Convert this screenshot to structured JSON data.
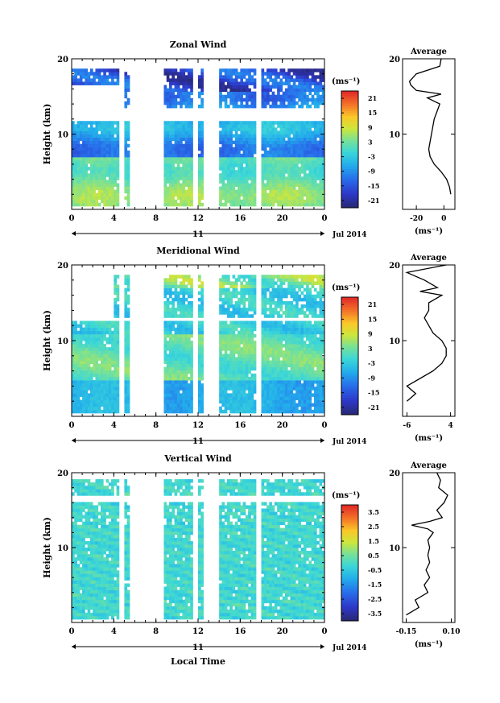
{
  "chart_data": [
    {
      "type": "heatmap",
      "title": "Zonal Wind",
      "ylabel": "Height (km)",
      "yticks": [
        "10",
        "20"
      ],
      "ylim": [
        0,
        20
      ],
      "xticks": [
        "0",
        "4",
        "8",
        "12",
        "16",
        "20",
        "0"
      ],
      "xlim": [
        0,
        24
      ],
      "day_label": "11",
      "month_label": "Jul 2014",
      "colorbar": {
        "unit": "(ms⁻¹)",
        "ticks": [
          "21",
          "15",
          "9",
          "3",
          "-3",
          "-9",
          "-15",
          "-21"
        ],
        "range": [
          -24,
          24
        ]
      },
      "data_gaps_hours": [
        [
          4.5,
          5.1
        ],
        [
          5.4,
          8.8
        ],
        [
          11.5,
          11.9
        ],
        [
          12.6,
          13.9
        ],
        [
          17.5,
          17.9
        ]
      ],
      "profile": {
        "title": "Average",
        "xticks": [
          "-20",
          "0"
        ],
        "xlim": [
          -30,
          8
        ],
        "xunit": "(ms⁻¹)",
        "yticks": [
          "10",
          "20"
        ],
        "heights_km": [
          2,
          3,
          4,
          5,
          6,
          7,
          8,
          9,
          10,
          11,
          12,
          13,
          14,
          14.8,
          15.3,
          15.8,
          16.5,
          17,
          18,
          19,
          20
        ],
        "values": [
          5,
          4,
          2,
          -2,
          -7,
          -10,
          -11,
          -10,
          -9,
          -8,
          -7,
          -5,
          -3,
          -12,
          -2,
          -20,
          -24,
          -25,
          -20,
          -3,
          -2
        ]
      }
    },
    {
      "type": "heatmap",
      "title": "Meridional Wind",
      "ylabel": "Height (km)",
      "yticks": [
        "10",
        "20"
      ],
      "ylim": [
        0,
        20
      ],
      "xticks": [
        "0",
        "4",
        "8",
        "12",
        "16",
        "20",
        "0"
      ],
      "xlim": [
        0,
        24
      ],
      "day_label": "11",
      "month_label": "Jul 2014",
      "colorbar": {
        "unit": "(ms⁻¹)",
        "ticks": [
          "21",
          "15",
          "9",
          "3",
          "-3",
          "-9",
          "-15",
          "-21"
        ],
        "range": [
          -24,
          24
        ]
      },
      "data_gaps_hours": [
        [
          4.5,
          5.1
        ],
        [
          5.4,
          8.8
        ],
        [
          11.5,
          11.9
        ],
        [
          12.6,
          13.9
        ],
        [
          17.5,
          17.9
        ]
      ],
      "profile": {
        "title": "Average",
        "xticks": [
          "-6",
          "4"
        ],
        "xlim": [
          -7,
          5
        ],
        "xunit": "(ms⁻¹)",
        "yticks": [
          "10",
          "20"
        ],
        "heights_km": [
          2,
          3,
          4,
          5,
          6,
          7,
          8,
          9,
          10,
          11,
          12,
          13,
          14,
          15,
          16,
          16.5,
          17,
          18,
          19,
          20
        ],
        "values": [
          -6,
          -4,
          -6,
          -3,
          0,
          2,
          3,
          3,
          2,
          0,
          -1,
          -2,
          -1,
          -1,
          2,
          -3,
          1,
          -2,
          -6,
          3
        ]
      }
    },
    {
      "type": "heatmap",
      "title": "Vertical Wind",
      "ylabel": "Height (km)",
      "yticks": [
        "10",
        "20"
      ],
      "ylim": [
        0,
        20
      ],
      "xticks": [
        "0",
        "4",
        "8",
        "12",
        "16",
        "20",
        "0"
      ],
      "xlim": [
        0,
        24
      ],
      "day_label": "11",
      "month_label": "Jul 2014",
      "xlabel": "Local Time",
      "colorbar": {
        "unit": "(ms⁻¹)",
        "ticks": [
          "3.5",
          "2.5",
          "1.5",
          "0.5",
          "-0.5",
          "-1.5",
          "-2.5",
          "-3.5"
        ],
        "range": [
          -4,
          4
        ]
      },
      "data_gaps_hours": [
        [
          4.5,
          5.1
        ],
        [
          5.4,
          8.8
        ],
        [
          11.5,
          11.9
        ],
        [
          12.6,
          13.9
        ],
        [
          17.5,
          17.9
        ]
      ],
      "profile": {
        "title": "Average",
        "xticks": [
          "-0.15",
          "0.10"
        ],
        "xlim": [
          -0.17,
          0.12
        ],
        "xunit": "(ms⁻¹)",
        "yticks": [
          "10",
          "20"
        ],
        "heights_km": [
          1,
          2,
          3,
          4,
          5,
          6,
          7,
          8,
          9,
          10,
          11,
          12,
          12.5,
          13,
          13.5,
          14,
          15,
          16,
          17,
          18,
          19,
          20
        ],
        "values": [
          -0.15,
          -0.08,
          -0.1,
          -0.03,
          -0.05,
          -0.02,
          -0.04,
          -0.02,
          -0.03,
          -0.02,
          -0.03,
          0.0,
          -0.03,
          -0.12,
          -0.02,
          0.05,
          0.02,
          0.06,
          0.08,
          0.03,
          0.04,
          0.02
        ]
      }
    }
  ]
}
